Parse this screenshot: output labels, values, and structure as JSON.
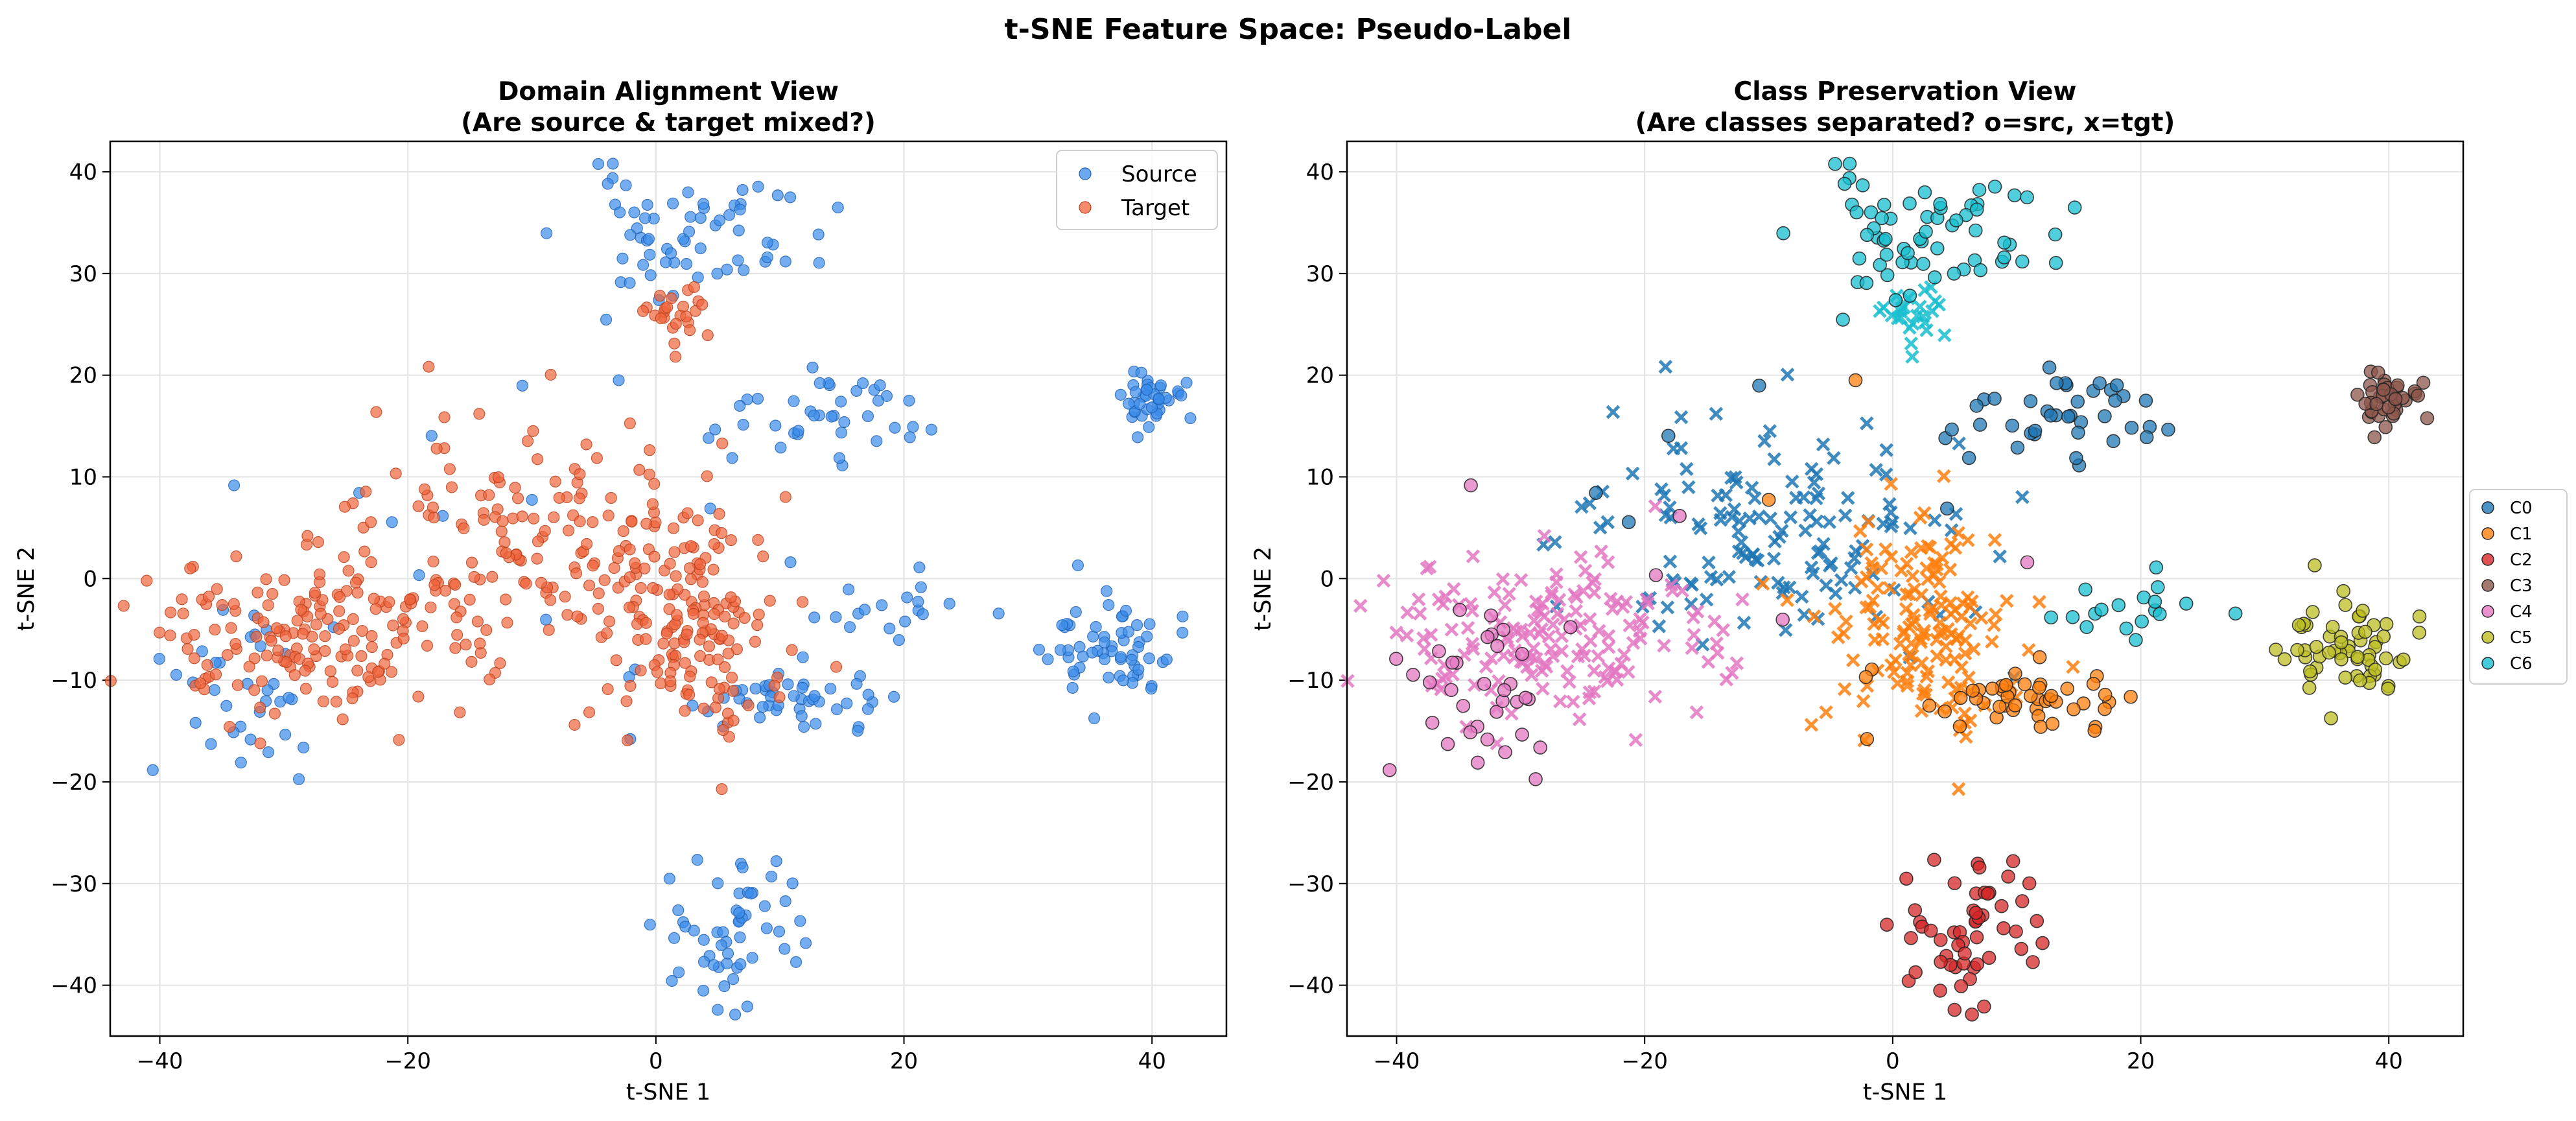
{
  "figure": {
    "suptitle": "t-SNE Feature Space: Pseudo-Label"
  },
  "colors": {
    "source": "#3b8bea",
    "target": "#f0643c",
    "C0": "#1f77b4",
    "C1": "#ff7f0e",
    "C2": "#d62728",
    "C3": "#8c564b",
    "C4": "#e377c2",
    "C5": "#bcbd22",
    "C6": "#17becf"
  },
  "chart_data": [
    {
      "type": "scatter",
      "title": "Domain Alignment View\n(Are source & target mixed?)",
      "xlabel": "t-SNE 1",
      "ylabel": "t-SNE 2",
      "xlim": [
        -44,
        46
      ],
      "ylim": [
        -45,
        43
      ],
      "xticks": [
        -40,
        -20,
        0,
        20,
        40
      ],
      "yticks": [
        -40,
        -30,
        -20,
        -10,
        0,
        10,
        20,
        30,
        40
      ],
      "grid": true,
      "legend": {
        "placement": "upper-right",
        "entries": [
          "Source",
          "Target"
        ]
      },
      "series": [
        {
          "name": "Source",
          "marker": "circle",
          "clusters": [
            {
              "label": "C6 source cluster",
              "center": [
                3,
                34
              ],
              "spread": [
                5,
                3
              ],
              "count": 65
            },
            {
              "label": "C0 source cluster",
              "center": [
                13,
                16
              ],
              "spread": [
                4,
                2
              ],
              "count": 40
            },
            {
              "label": "C3 source cluster",
              "center": [
                39.5,
                17.5
              ],
              "spread": [
                1.4,
                1.3
              ],
              "count": 40
            },
            {
              "label": "C5 source cluster",
              "center": [
                37,
                -7
              ],
              "spread": [
                2.5,
                2.5
              ],
              "count": 60
            },
            {
              "label": "C1 source cluster",
              "center": [
                11,
                -12
              ],
              "spread": [
                4,
                2
              ],
              "count": 45
            },
            {
              "label": "C2 source cluster",
              "center": [
                6,
                -35
              ],
              "spread": [
                3,
                4
              ],
              "count": 55
            },
            {
              "label": "C6 source tail",
              "center": [
                19,
                -3
              ],
              "spread": [
                4,
                2
              ],
              "count": 18
            },
            {
              "label": "C4 source cluster",
              "center": [
                -33,
                -12
              ],
              "spread": [
                4,
                5
              ],
              "count": 35
            },
            {
              "label": "scattered source",
              "center": [
                -8,
                5
              ],
              "spread": [
                12,
                10
              ],
              "count": 15
            }
          ]
        },
        {
          "name": "Target",
          "marker": "circle",
          "clusters": [
            {
              "label": "C6 target cluster",
              "center": [
                1.5,
                26
              ],
              "spread": [
                1.5,
                1.5
              ],
              "count": 25
            },
            {
              "label": "C0 target region",
              "center": [
                -10,
                5
              ],
              "spread": [
                8,
                6
              ],
              "count": 140
            },
            {
              "label": "C1 target region",
              "center": [
                2,
                -4
              ],
              "spread": [
                4,
                5
              ],
              "count": 150
            },
            {
              "label": "C4 target region",
              "center": [
                -28,
                -6
              ],
              "spread": [
                7,
                4
              ],
              "count": 170
            }
          ]
        }
      ]
    },
    {
      "type": "scatter",
      "title": "Class Preservation View\n(Are classes separated? o=src, x=tgt)",
      "xlabel": "t-SNE 1",
      "ylabel": "t-SNE 2",
      "xlim": [
        -44,
        46
      ],
      "ylim": [
        -45,
        43
      ],
      "xticks": [
        -40,
        -20,
        0,
        20,
        40
      ],
      "yticks": [
        -40,
        -30,
        -20,
        -10,
        0,
        10,
        20,
        30,
        40
      ],
      "grid": true,
      "legend": {
        "placement": "outside-right",
        "entries": [
          "C0",
          "C1",
          "C2",
          "C3",
          "C4",
          "C5",
          "C6"
        ]
      },
      "series": [
        {
          "name": "C0",
          "source": [
            {
              "center": [
                13,
                16
              ],
              "spread": [
                4,
                2
              ],
              "count": 40
            }
          ],
          "target": [
            {
              "center": [
                -10,
                5
              ],
              "spread": [
                8,
                6
              ],
              "count": 140
            }
          ]
        },
        {
          "name": "C1",
          "source": [
            {
              "center": [
                11,
                -12
              ],
              "spread": [
                4,
                2
              ],
              "count": 45
            }
          ],
          "target": [
            {
              "center": [
                2,
                -4
              ],
              "spread": [
                4,
                5
              ],
              "count": 150
            }
          ]
        },
        {
          "name": "C2",
          "source": [
            {
              "center": [
                6,
                -35
              ],
              "spread": [
                3,
                4
              ],
              "count": 55
            }
          ],
          "target": []
        },
        {
          "name": "C3",
          "source": [
            {
              "center": [
                39.5,
                17.5
              ],
              "spread": [
                1.4,
                1.3
              ],
              "count": 40
            }
          ],
          "target": []
        },
        {
          "name": "C4",
          "source": [
            {
              "center": [
                -33,
                -12
              ],
              "spread": [
                4,
                5
              ],
              "count": 35
            }
          ],
          "target": [
            {
              "center": [
                -28,
                -6
              ],
              "spread": [
                7,
                4
              ],
              "count": 170
            }
          ]
        },
        {
          "name": "C5",
          "source": [
            {
              "center": [
                37,
                -7
              ],
              "spread": [
                2.5,
                2.5
              ],
              "count": 60
            }
          ],
          "target": []
        },
        {
          "name": "C6",
          "source": [
            {
              "center": [
                3,
                34
              ],
              "spread": [
                5,
                3
              ],
              "count": 65
            },
            {
              "center": [
                19,
                -3
              ],
              "spread": [
                4,
                2
              ],
              "count": 18
            }
          ],
          "target": [
            {
              "center": [
                1.5,
                26
              ],
              "spread": [
                1.5,
                1.5
              ],
              "count": 25
            }
          ]
        }
      ]
    }
  ]
}
